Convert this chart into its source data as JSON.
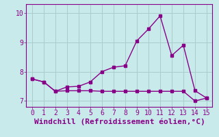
{
  "title": "",
  "xlabel": "Windchill (Refroidissement éolien,°C)",
  "ylabel": "",
  "background_color": "#c8eaea",
  "line_color": "#880088",
  "grid_color": "#aacccc",
  "xlim": [
    -0.5,
    15.5
  ],
  "ylim": [
    6.8,
    10.3
  ],
  "xticks": [
    0,
    1,
    2,
    3,
    4,
    5,
    6,
    7,
    8,
    9,
    10,
    11,
    12,
    13,
    14,
    15
  ],
  "yticks": [
    7,
    8,
    9,
    10
  ],
  "line1_x": [
    0,
    1,
    2,
    3,
    4,
    5,
    6,
    7,
    8,
    9,
    10,
    11,
    12,
    13,
    14,
    15
  ],
  "line1_y": [
    7.75,
    7.65,
    7.33,
    7.48,
    7.5,
    7.65,
    8.0,
    8.15,
    8.2,
    9.05,
    9.45,
    9.9,
    8.55,
    8.9,
    7.35,
    7.1
  ],
  "line2_x": [
    0,
    1,
    2,
    3,
    4,
    5,
    6,
    7,
    8,
    9,
    10,
    11,
    12,
    13,
    14,
    15
  ],
  "line2_y": [
    7.75,
    7.65,
    7.33,
    7.35,
    7.35,
    7.35,
    7.33,
    7.33,
    7.33,
    7.33,
    7.33,
    7.33,
    7.33,
    7.33,
    7.0,
    7.1
  ],
  "markersize": 3,
  "linewidth": 1.0,
  "xlabel_fontsize": 8,
  "tick_fontsize": 7,
  "fig_width": 3.2,
  "fig_height": 2.0,
  "dpi": 100
}
